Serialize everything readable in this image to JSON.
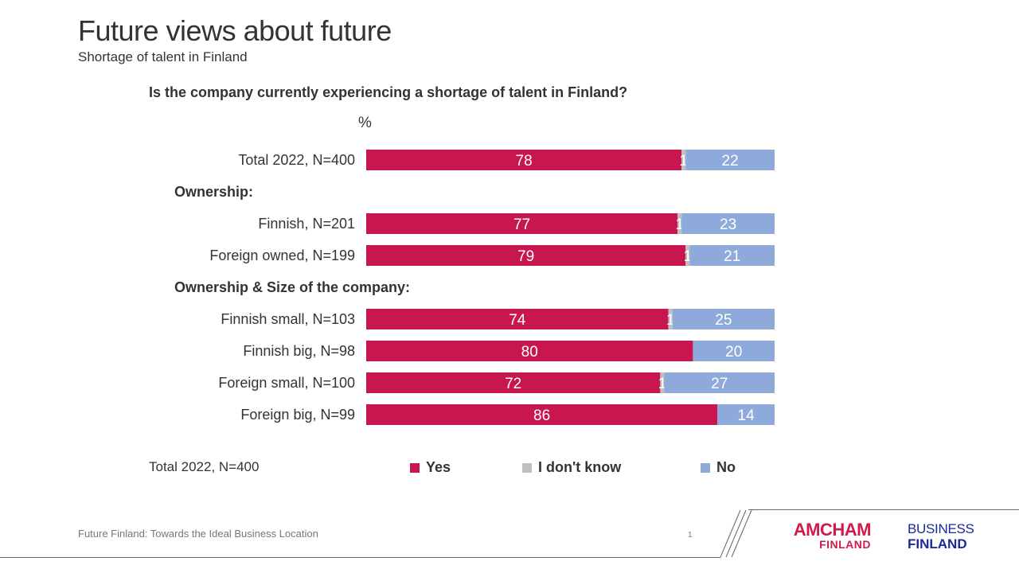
{
  "header": {
    "title": "Future views about future",
    "subtitle": "Shortage of talent in Finland"
  },
  "chart_data": {
    "type": "bar",
    "orientation": "horizontal",
    "stacked": true,
    "title": "Is the company currently experiencing a shortage of talent in Finland?",
    "unit": "%",
    "xlim": [
      0,
      100
    ],
    "grid": false,
    "legend_position": "bottom",
    "groups": [
      {
        "label": "",
        "rows": [
          {
            "label": "Total 2022, N=400",
            "values": [
              78,
              1,
              22
            ]
          }
        ]
      },
      {
        "label": "Ownership:",
        "rows": [
          {
            "label": "Finnish, N=201",
            "values": [
              77,
              1,
              23
            ]
          },
          {
            "label": "Foreign owned, N=199",
            "values": [
              79,
              1,
              21
            ]
          }
        ]
      },
      {
        "label": "Ownership & Size of the company:",
        "rows": [
          {
            "label": "Finnish small, N=103",
            "values": [
              74,
              1,
              25
            ]
          },
          {
            "label": "Finnish big, N=98",
            "values": [
              80,
              null,
              20
            ]
          },
          {
            "label": "Foreign small, N=100",
            "values": [
              72,
              1,
              27
            ]
          },
          {
            "label": "Foreign big, N=99",
            "values": [
              86,
              null,
              14
            ]
          }
        ]
      }
    ],
    "series": [
      {
        "name": "Yes",
        "color": "#c8164f"
      },
      {
        "name": "I don't know",
        "color": "#bfbfbf"
      },
      {
        "name": "No",
        "color": "#8eaadb"
      }
    ]
  },
  "legend": {
    "base_note": "Total 2022, N=400"
  },
  "footer": {
    "text": "Future Finland: Towards the Ideal Business Location",
    "page_number": "1"
  },
  "logos": {
    "amcham_line1": "AMCHAM",
    "amcham_line2": "FINLAND",
    "bf_line1": "BUSINESS",
    "bf_line2": "FINLAND"
  }
}
